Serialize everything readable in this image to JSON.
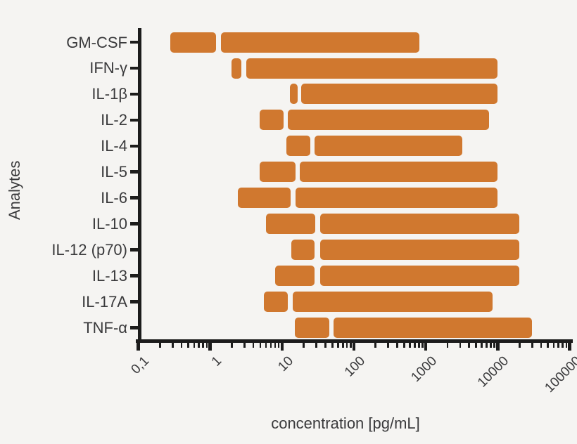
{
  "figure": {
    "background": "#f5f4f2",
    "bar_color": "#d0782f",
    "axis_color": "#1c1c1c",
    "text_color": "#3a3a3c"
  },
  "chart_data": {
    "type": "bar",
    "orientation": "horizontal",
    "x_scale": "log",
    "grid": false,
    "legend": null,
    "title": "",
    "xlabel": "concentration [pg/mL]",
    "ylabel": "Analytes",
    "xlim": [
      0.1,
      100000
    ],
    "x_tick_values": [
      0.1,
      1,
      10,
      100,
      1000,
      10000,
      100000
    ],
    "x_tick_labels": [
      "0,1",
      "1",
      "10",
      "100",
      "1000",
      "10000",
      "100000"
    ],
    "series_note": "each analyte row shows two concentration-range segments [low, high] in pg/mL separated by a small gap",
    "analytes": [
      {
        "label": "GM-CSF",
        "segments": [
          [
            0.28,
            1.2
          ],
          [
            1.4,
            820
          ]
        ]
      },
      {
        "label": "IFN-γ",
        "segments": [
          [
            2.0,
            2.7
          ],
          [
            3.2,
            10000
          ]
        ]
      },
      {
        "label": "IL-1β",
        "segments": [
          [
            13,
            16.5
          ],
          [
            18.5,
            10000
          ]
        ]
      },
      {
        "label": "IL-2",
        "segments": [
          [
            4.9,
            10.6
          ],
          [
            12,
            7600
          ]
        ]
      },
      {
        "label": "IL-4",
        "segments": [
          [
            11.4,
            24.5
          ],
          [
            28,
            3200
          ]
        ]
      },
      {
        "label": "IL-5",
        "segments": [
          [
            4.9,
            15.4
          ],
          [
            17.5,
            10000
          ]
        ]
      },
      {
        "label": "IL-6",
        "segments": [
          [
            2.4,
            13
          ],
          [
            15.5,
            10000
          ]
        ]
      },
      {
        "label": "IL-10",
        "segments": [
          [
            6.0,
            29
          ],
          [
            33.5,
            20000
          ]
        ]
      },
      {
        "label": "IL-12 (p70)",
        "segments": [
          [
            13.5,
            28.5
          ],
          [
            33.5,
            20000
          ]
        ]
      },
      {
        "label": "IL-13",
        "segments": [
          [
            8.0,
            28.5
          ],
          [
            33.5,
            20000
          ]
        ]
      },
      {
        "label": "IL-17A",
        "segments": [
          [
            5.6,
            12
          ],
          [
            14,
            8500
          ]
        ]
      },
      {
        "label": "TNF-α",
        "segments": [
          [
            15.2,
            45
          ],
          [
            52,
            30000
          ]
        ]
      }
    ]
  }
}
